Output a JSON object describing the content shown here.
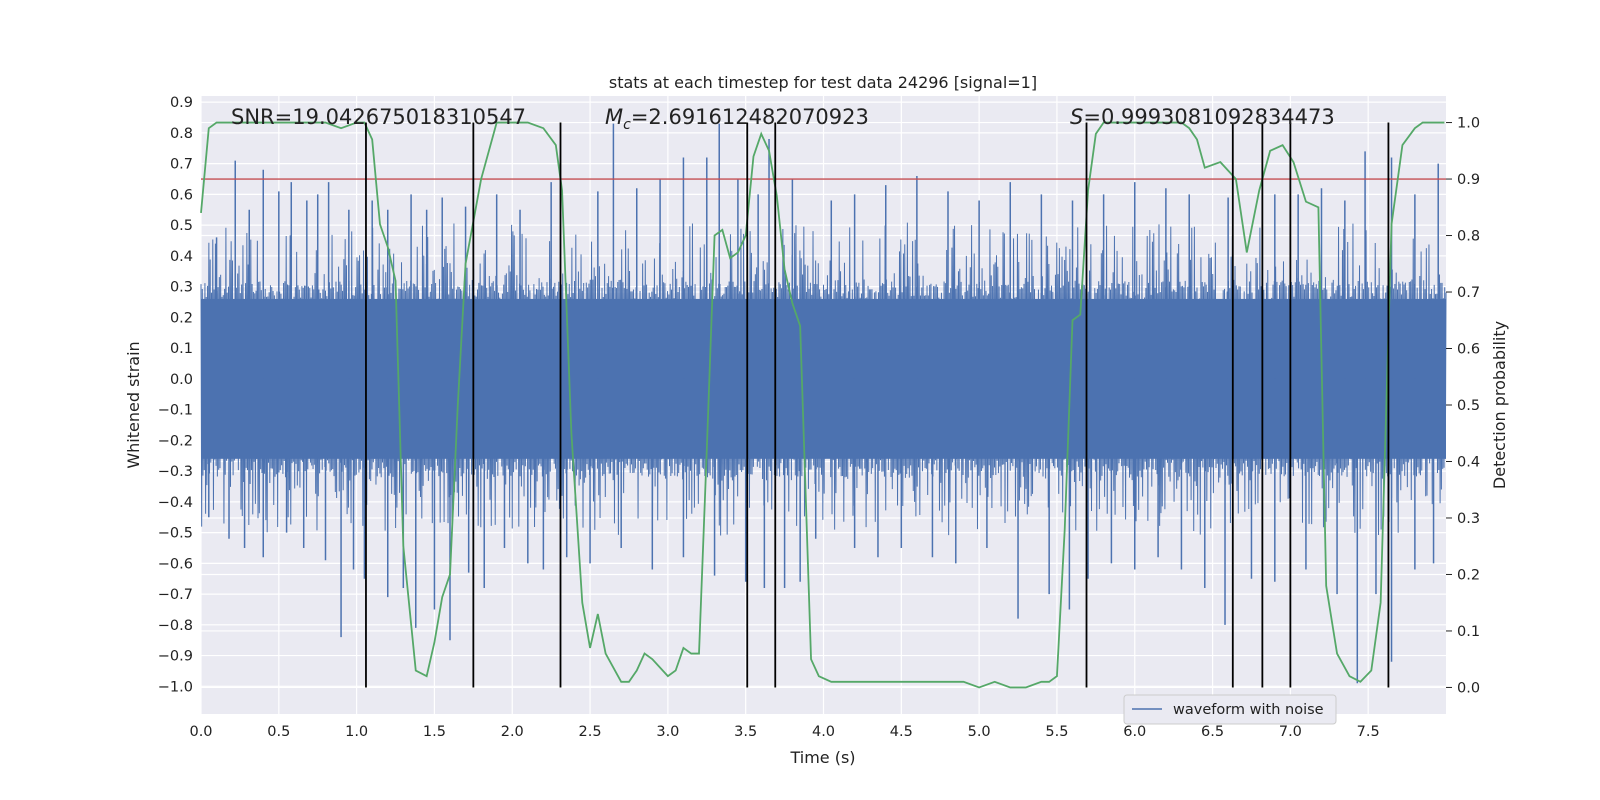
{
  "chart_data": {
    "type": "line",
    "title": "stats at each timestep for test data 24296 [signal=1]",
    "xlabel": "Time (s)",
    "ylabel": "Whitened strain",
    "y2label": "Detection probability",
    "xlim": [
      0,
      8
    ],
    "ylim": [
      -1.09,
      0.92
    ],
    "y2lim": [
      -0.047,
      1.047
    ],
    "xticks": [
      0.0,
      0.5,
      1.0,
      1.5,
      2.0,
      2.5,
      3.0,
      3.5,
      4.0,
      4.5,
      5.0,
      5.5,
      6.0,
      6.5,
      7.0,
      7.5
    ],
    "xtick_labels": [
      "0.0",
      "0.5",
      "1.0",
      "1.5",
      "2.0",
      "2.5",
      "3.0",
      "3.5",
      "4.0",
      "4.5",
      "5.0",
      "5.5",
      "6.0",
      "6.5",
      "7.0",
      "7.5"
    ],
    "yticks": [
      0.9,
      0.8,
      0.7,
      0.6,
      0.5,
      0.4,
      0.3,
      0.2,
      0.1,
      0.0,
      -0.1,
      -0.2,
      -0.3,
      -0.4,
      -0.5,
      -0.6,
      -0.7,
      -0.8,
      -0.9,
      -1.0
    ],
    "ytick_labels": [
      "0.9",
      "0.8",
      "0.7",
      "0.6",
      "0.5",
      "0.4",
      "0.3",
      "0.2",
      "0.1",
      "0.0",
      "−0.1",
      "−0.2",
      "−0.3",
      "−0.4",
      "−0.5",
      "−0.6",
      "−0.7",
      "−0.8",
      "−0.9",
      "−1.0"
    ],
    "y2ticks": [
      1.0,
      0.9,
      0.8,
      0.7,
      0.6,
      0.5,
      0.4,
      0.3,
      0.2,
      0.1,
      0.0
    ],
    "y2tick_labels": [
      "1.0",
      "0.9",
      "0.8",
      "0.7",
      "0.6",
      "0.5",
      "0.4",
      "0.3",
      "0.2",
      "0.1",
      "0.0"
    ],
    "grid": true,
    "legend": {
      "placement": "lower-right",
      "entries": [
        "waveform with noise"
      ]
    },
    "annotations": {
      "snr": "SNR=19.042675018310547",
      "mc_symbol": "M",
      "mc_sub": "c",
      "mc_value": "=2.691612482070923",
      "s_symbol": "S",
      "s_value": "=0.9993081092834473"
    },
    "series": [
      {
        "name": "waveform with noise",
        "axis": "left",
        "color": "#4c72b0",
        "kind": "noise-band",
        "core_amplitude": 0.29,
        "spikes": [
          {
            "x": 0.1,
            "y": 0.46
          },
          {
            "x": 0.22,
            "y": 0.71
          },
          {
            "x": 0.31,
            "y": 0.55
          },
          {
            "x": 0.4,
            "y": 0.68
          },
          {
            "x": 0.5,
            "y": 0.61
          },
          {
            "x": 0.58,
            "y": 0.64
          },
          {
            "x": 0.68,
            "y": 0.58
          },
          {
            "x": 0.75,
            "y": 0.6
          },
          {
            "x": 0.82,
            "y": 0.64
          },
          {
            "x": 0.95,
            "y": 0.55
          },
          {
            "x": 1.1,
            "y": 0.58
          },
          {
            "x": 1.2,
            "y": 0.55
          },
          {
            "x": 1.35,
            "y": 0.6
          },
          {
            "x": 1.45,
            "y": 0.55
          },
          {
            "x": 1.55,
            "y": 0.59
          },
          {
            "x": 1.7,
            "y": 0.56
          },
          {
            "x": 1.9,
            "y": 0.6
          },
          {
            "x": 2.05,
            "y": 0.55
          },
          {
            "x": 2.25,
            "y": 0.64
          },
          {
            "x": 2.55,
            "y": 0.61
          },
          {
            "x": 2.65,
            "y": 0.83
          },
          {
            "x": 2.8,
            "y": 0.62
          },
          {
            "x": 2.95,
            "y": 0.65
          },
          {
            "x": 3.1,
            "y": 0.72
          },
          {
            "x": 3.25,
            "y": 0.72
          },
          {
            "x": 3.33,
            "y": 0.83
          },
          {
            "x": 3.45,
            "y": 0.65
          },
          {
            "x": 3.58,
            "y": 0.6
          },
          {
            "x": 3.65,
            "y": 0.78
          },
          {
            "x": 3.8,
            "y": 0.65
          },
          {
            "x": 4.05,
            "y": 0.58
          },
          {
            "x": 4.2,
            "y": 0.6
          },
          {
            "x": 4.4,
            "y": 0.63
          },
          {
            "x": 4.6,
            "y": 0.66
          },
          {
            "x": 4.8,
            "y": 0.61
          },
          {
            "x": 5.0,
            "y": 0.58
          },
          {
            "x": 5.2,
            "y": 0.64
          },
          {
            "x": 5.4,
            "y": 0.6
          },
          {
            "x": 5.6,
            "y": 0.58
          },
          {
            "x": 5.8,
            "y": 0.6
          },
          {
            "x": 6.0,
            "y": 0.64
          },
          {
            "x": 6.2,
            "y": 0.62
          },
          {
            "x": 6.35,
            "y": 0.6
          },
          {
            "x": 6.6,
            "y": 0.59
          },
          {
            "x": 6.9,
            "y": 0.6
          },
          {
            "x": 7.05,
            "y": 0.6
          },
          {
            "x": 7.2,
            "y": 0.62
          },
          {
            "x": 7.35,
            "y": 0.58
          },
          {
            "x": 7.48,
            "y": 0.74
          },
          {
            "x": 7.65,
            "y": 0.72
          },
          {
            "x": 7.8,
            "y": 0.6
          },
          {
            "x": 7.95,
            "y": 0.7
          },
          {
            "x": 0.05,
            "y": -0.45
          },
          {
            "x": 0.18,
            "y": -0.52
          },
          {
            "x": 0.28,
            "y": -0.55
          },
          {
            "x": 0.4,
            "y": -0.58
          },
          {
            "x": 0.55,
            "y": -0.5
          },
          {
            "x": 0.66,
            "y": -0.55
          },
          {
            "x": 0.8,
            "y": -0.59
          },
          {
            "x": 0.9,
            "y": -0.84
          },
          {
            "x": 0.98,
            "y": -0.62
          },
          {
            "x": 1.05,
            "y": -0.65
          },
          {
            "x": 1.2,
            "y": -0.71
          },
          {
            "x": 1.3,
            "y": -0.68
          },
          {
            "x": 1.38,
            "y": -0.81
          },
          {
            "x": 1.5,
            "y": -0.75
          },
          {
            "x": 1.6,
            "y": -0.85
          },
          {
            "x": 1.72,
            "y": -0.63
          },
          {
            "x": 1.82,
            "y": -0.68
          },
          {
            "x": 1.95,
            "y": -0.55
          },
          {
            "x": 2.1,
            "y": -0.6
          },
          {
            "x": 2.2,
            "y": -0.62
          },
          {
            "x": 2.35,
            "y": -0.58
          },
          {
            "x": 2.5,
            "y": -0.6
          },
          {
            "x": 2.7,
            "y": -0.55
          },
          {
            "x": 2.9,
            "y": -0.62
          },
          {
            "x": 3.1,
            "y": -0.58
          },
          {
            "x": 3.3,
            "y": -0.64
          },
          {
            "x": 3.5,
            "y": -0.66
          },
          {
            "x": 3.62,
            "y": -0.68
          },
          {
            "x": 3.75,
            "y": -0.68
          },
          {
            "x": 3.85,
            "y": -0.66
          },
          {
            "x": 3.95,
            "y": -0.52
          },
          {
            "x": 4.2,
            "y": -0.55
          },
          {
            "x": 4.35,
            "y": -0.58
          },
          {
            "x": 4.5,
            "y": -0.55
          },
          {
            "x": 4.7,
            "y": -0.58
          },
          {
            "x": 4.85,
            "y": -0.6
          },
          {
            "x": 5.05,
            "y": -0.55
          },
          {
            "x": 5.25,
            "y": -0.78
          },
          {
            "x": 5.45,
            "y": -0.7
          },
          {
            "x": 5.58,
            "y": -0.75
          },
          {
            "x": 5.7,
            "y": -0.65
          },
          {
            "x": 5.85,
            "y": -0.6
          },
          {
            "x": 6.0,
            "y": -0.62
          },
          {
            "x": 6.15,
            "y": -0.58
          },
          {
            "x": 6.3,
            "y": -0.62
          },
          {
            "x": 6.45,
            "y": -0.68
          },
          {
            "x": 6.58,
            "y": -0.8
          },
          {
            "x": 6.75,
            "y": -0.65
          },
          {
            "x": 6.9,
            "y": -0.66
          },
          {
            "x": 7.1,
            "y": -0.62
          },
          {
            "x": 7.3,
            "y": -0.7
          },
          {
            "x": 7.43,
            "y": -0.99
          },
          {
            "x": 7.55,
            "y": -0.7
          },
          {
            "x": 7.65,
            "y": -0.92
          },
          {
            "x": 7.8,
            "y": -0.62
          },
          {
            "x": 7.92,
            "y": -0.6
          }
        ]
      },
      {
        "name": "detection probability",
        "axis": "right",
        "color": "#55a868",
        "x": [
          0.0,
          0.05,
          0.1,
          0.2,
          0.3,
          0.4,
          0.5,
          0.6,
          0.7,
          0.8,
          0.9,
          1.0,
          1.05,
          1.1,
          1.15,
          1.2,
          1.25,
          1.3,
          1.38,
          1.45,
          1.5,
          1.55,
          1.6,
          1.65,
          1.7,
          1.8,
          1.9,
          2.0,
          2.1,
          2.2,
          2.28,
          2.32,
          2.38,
          2.45,
          2.5,
          2.55,
          2.6,
          2.7,
          2.75,
          2.8,
          2.85,
          2.9,
          3.0,
          3.05,
          3.1,
          3.15,
          3.2,
          3.25,
          3.3,
          3.35,
          3.4,
          3.45,
          3.5,
          3.55,
          3.6,
          3.65,
          3.7,
          3.75,
          3.8,
          3.85,
          3.92,
          3.97,
          4.05,
          4.15,
          4.25,
          4.35,
          4.5,
          4.55,
          4.6,
          4.7,
          4.8,
          4.9,
          5.0,
          5.1,
          5.2,
          5.3,
          5.4,
          5.45,
          5.5,
          5.55,
          5.6,
          5.65,
          5.7,
          5.75,
          5.8,
          5.9,
          6.0,
          6.1,
          6.2,
          6.3,
          6.35,
          6.4,
          6.45,
          6.55,
          6.65,
          6.72,
          6.8,
          6.87,
          6.95,
          7.02,
          7.1,
          7.18,
          7.23,
          7.3,
          7.38,
          7.45,
          7.52,
          7.58,
          7.65,
          7.72,
          7.8,
          7.85,
          7.9,
          7.95,
          7.99
        ],
        "y": [
          0.84,
          0.99,
          1.0,
          1.0,
          1.0,
          1.0,
          1.0,
          1.0,
          1.0,
          1.0,
          0.99,
          1.0,
          1.0,
          0.97,
          0.82,
          0.78,
          0.72,
          0.25,
          0.03,
          0.02,
          0.08,
          0.16,
          0.2,
          0.5,
          0.75,
          0.9,
          1.0,
          1.0,
          1.0,
          0.99,
          0.96,
          0.88,
          0.45,
          0.15,
          0.07,
          0.13,
          0.06,
          0.01,
          0.01,
          0.03,
          0.06,
          0.05,
          0.02,
          0.03,
          0.07,
          0.06,
          0.06,
          0.42,
          0.8,
          0.81,
          0.76,
          0.77,
          0.8,
          0.94,
          0.98,
          0.95,
          0.87,
          0.74,
          0.68,
          0.64,
          0.05,
          0.02,
          0.01,
          0.01,
          0.01,
          0.01,
          0.01,
          0.01,
          0.01,
          0.01,
          0.01,
          0.01,
          0.0,
          0.01,
          0.0,
          0.0,
          0.01,
          0.01,
          0.02,
          0.28,
          0.65,
          0.66,
          0.88,
          0.98,
          1.0,
          1.0,
          1.0,
          1.0,
          1.0,
          1.0,
          0.99,
          0.97,
          0.92,
          0.93,
          0.9,
          0.77,
          0.88,
          0.95,
          0.96,
          0.93,
          0.86,
          0.85,
          0.18,
          0.06,
          0.02,
          0.01,
          0.03,
          0.15,
          0.82,
          0.96,
          0.99,
          1.0,
          1.0,
          1.0,
          1.0
        ]
      }
    ],
    "threshold": {
      "axis": "right",
      "value": 0.9,
      "color": "#c44e52"
    },
    "vlines": [
      1.06,
      1.75,
      2.31,
      3.51,
      3.69,
      5.69,
      6.63,
      6.82,
      7.0,
      7.63
    ]
  }
}
